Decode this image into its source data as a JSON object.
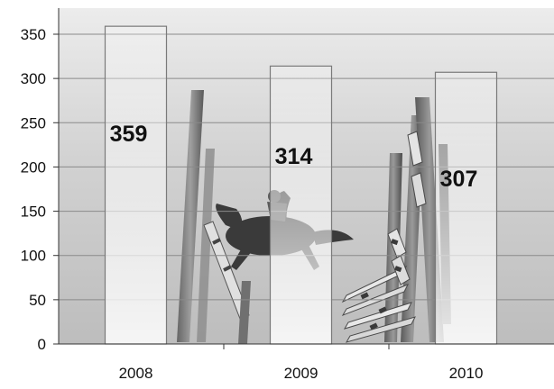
{
  "chart_data": {
    "type": "bar",
    "categories": [
      "2008",
      "2009",
      "2010"
    ],
    "values": [
      359,
      314,
      307
    ],
    "data_labels": [
      "359",
      "314",
      "307"
    ],
    "title": "",
    "xlabel": "",
    "ylabel": "",
    "ylim": [
      0,
      350
    ],
    "yticks": [
      "0",
      "50",
      "100",
      "150",
      "200",
      "250",
      "300",
      "350"
    ],
    "grid": true,
    "legend": "none",
    "background": "photo of a show-jumping horse clearing colorful rails, grayscale",
    "colors": {
      "bar_fill": "#f4f4f4",
      "bar_outline": "#7a7a7a",
      "gridline": "#8a8a8a",
      "text": "#111111"
    }
  }
}
